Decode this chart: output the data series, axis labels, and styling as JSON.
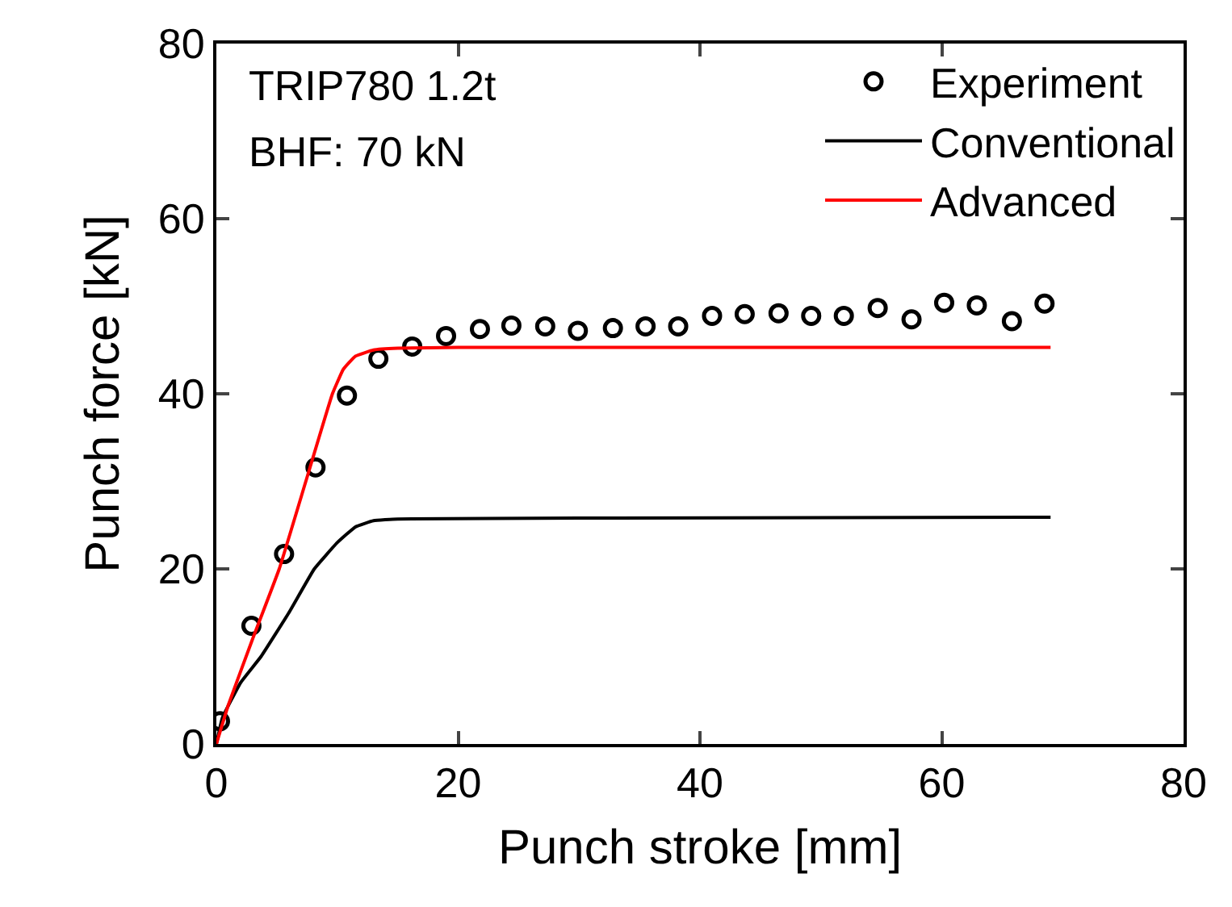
{
  "chart_data": {
    "type": "line",
    "xlabel": "Punch stroke [mm]",
    "ylabel": "Punch force [kN]",
    "xlim": [
      0,
      80
    ],
    "xticks": [
      0,
      20,
      40,
      60,
      80
    ],
    "ylim": [
      0,
      80
    ],
    "yticks": [
      0,
      20,
      40,
      60,
      80
    ],
    "legend": "top right",
    "annotations": [
      "TRIP780 1.2t",
      "BHF: 70 kN"
    ],
    "series": [
      {
        "name": "Experiment",
        "type": "scatter",
        "marker": "circle",
        "color": "#000000",
        "x": [
          0.3,
          2.9,
          5.6,
          8.2,
          10.8,
          13.4,
          16.2,
          19.0,
          21.8,
          24.4,
          27.2,
          29.9,
          32.8,
          35.5,
          38.2,
          41.0,
          43.7,
          46.5,
          49.2,
          51.9,
          54.7,
          57.5,
          60.2,
          62.9,
          65.8,
          68.5
        ],
        "values": [
          2.6,
          13.5,
          21.7,
          31.6,
          39.8,
          44.0,
          45.4,
          46.6,
          47.4,
          47.8,
          47.7,
          47.2,
          47.5,
          47.7,
          47.7,
          48.9,
          49.1,
          49.2,
          48.9,
          48.9,
          49.8,
          48.5,
          50.4,
          50.1,
          48.3,
          50.3
        ]
      },
      {
        "name": "Conventional",
        "line_style": "solid",
        "color": "#000000",
        "x": [
          0,
          0.5,
          2,
          3.7,
          6,
          8.1,
          10,
          11.5,
          13,
          15,
          30,
          69
        ],
        "values": [
          0,
          3,
          7,
          10,
          15,
          20,
          23,
          24.8,
          25.5,
          25.7,
          25.8,
          25.9
        ]
      },
      {
        "name": "Advanced",
        "line_style": "solid",
        "color": "#ff0000",
        "x": [
          0,
          1,
          3,
          5.2,
          7.4,
          9.6,
          10.5,
          11.5,
          13,
          15,
          20,
          69
        ],
        "values": [
          0,
          4.5,
          12,
          20,
          30,
          40,
          42.8,
          44.3,
          45,
          45.2,
          45.3,
          45.3
        ]
      }
    ]
  }
}
